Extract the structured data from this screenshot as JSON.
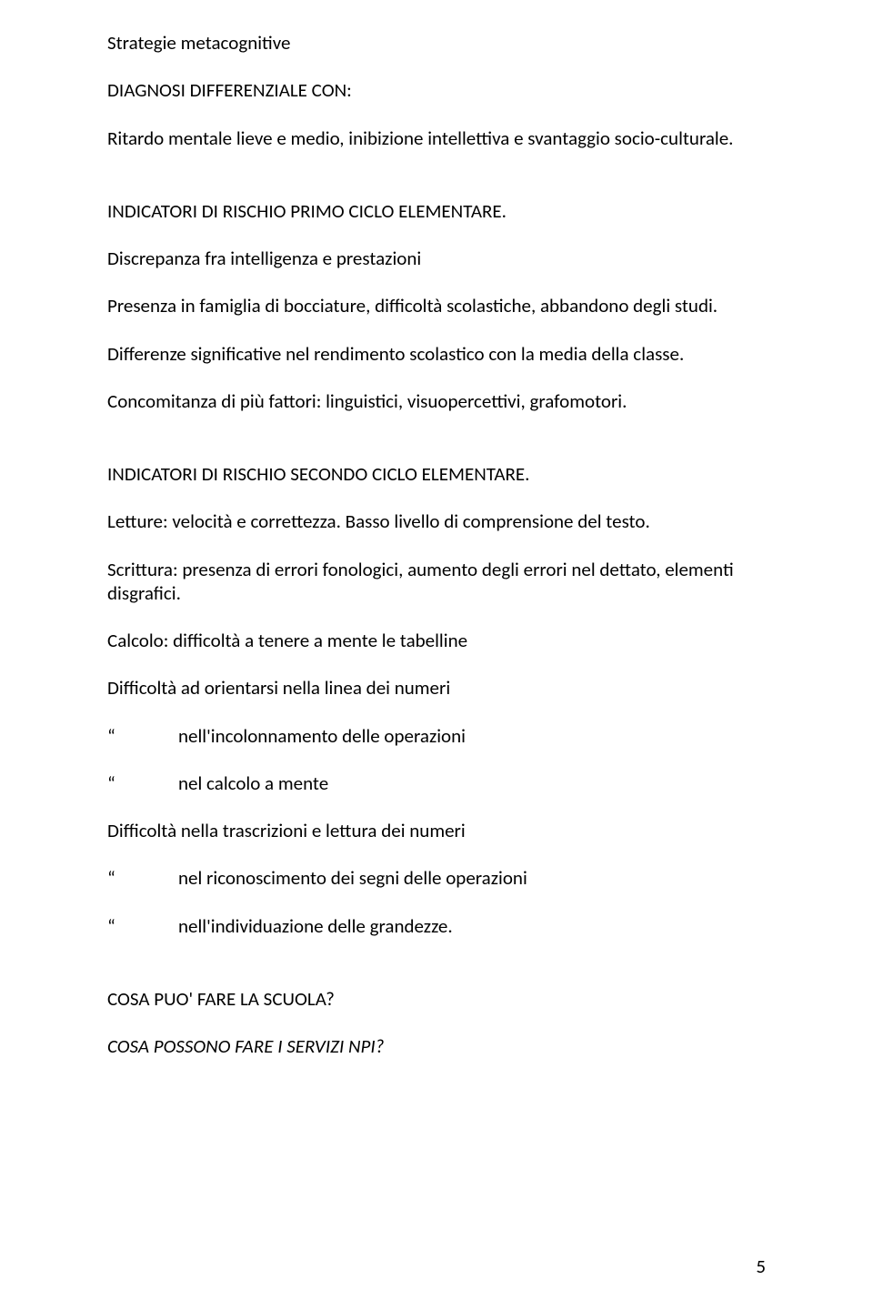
{
  "p1": "Strategie metacognitive",
  "p2": "DIAGNOSI DIFFERENZIALE CON:",
  "p3": "Ritardo mentale lieve e medio, inibizione intellettiva e svantaggio socio-culturale.",
  "p4": "INDICATORI DI RISCHIO PRIMO CICLO ELEMENTARE.",
  "p5": "Discrepanza fra intelligenza e prestazioni",
  "p6": "Presenza in famiglia di bocciature, difficoltà scolastiche, abbandono degli studi.",
  "p7": "Differenze significative nel rendimento scolastico con la media della classe.",
  "p8": "Concomitanza di più fattori: linguistici, visuopercettivi, grafomotori.",
  "p9": "INDICATORI DI RISCHIO SECONDO CICLO ELEMENTARE.",
  "p10": "Letture: velocità e correttezza. Basso livello di comprensione del testo.",
  "p11": "Scrittura: presenza di errori fonologici, aumento degli errori nel dettato, elementi disgrafici.",
  "p12": "Calcolo: difficoltà a tenere a mente le tabelline",
  "p13": "Difficoltà ad orientarsi nella linea dei numeri",
  "i1q": "“",
  "i1t": "nell'incolonnamento delle operazioni",
  "i2q": "“",
  "i2t": "nel calcolo a mente",
  "p14": "Difficoltà nella trascrizioni e lettura dei numeri",
  "i3q": "“",
  "i3t": "nel riconoscimento dei segni delle operazioni",
  "i4q": "“",
  "i4t": "nell'individuazione delle grandezze.",
  "p15": "COSA PUO' FARE LA SCUOLA?",
  "p16": "COSA POSSONO FARE I SERVIZI NPI?",
  "pageNumber": "5"
}
